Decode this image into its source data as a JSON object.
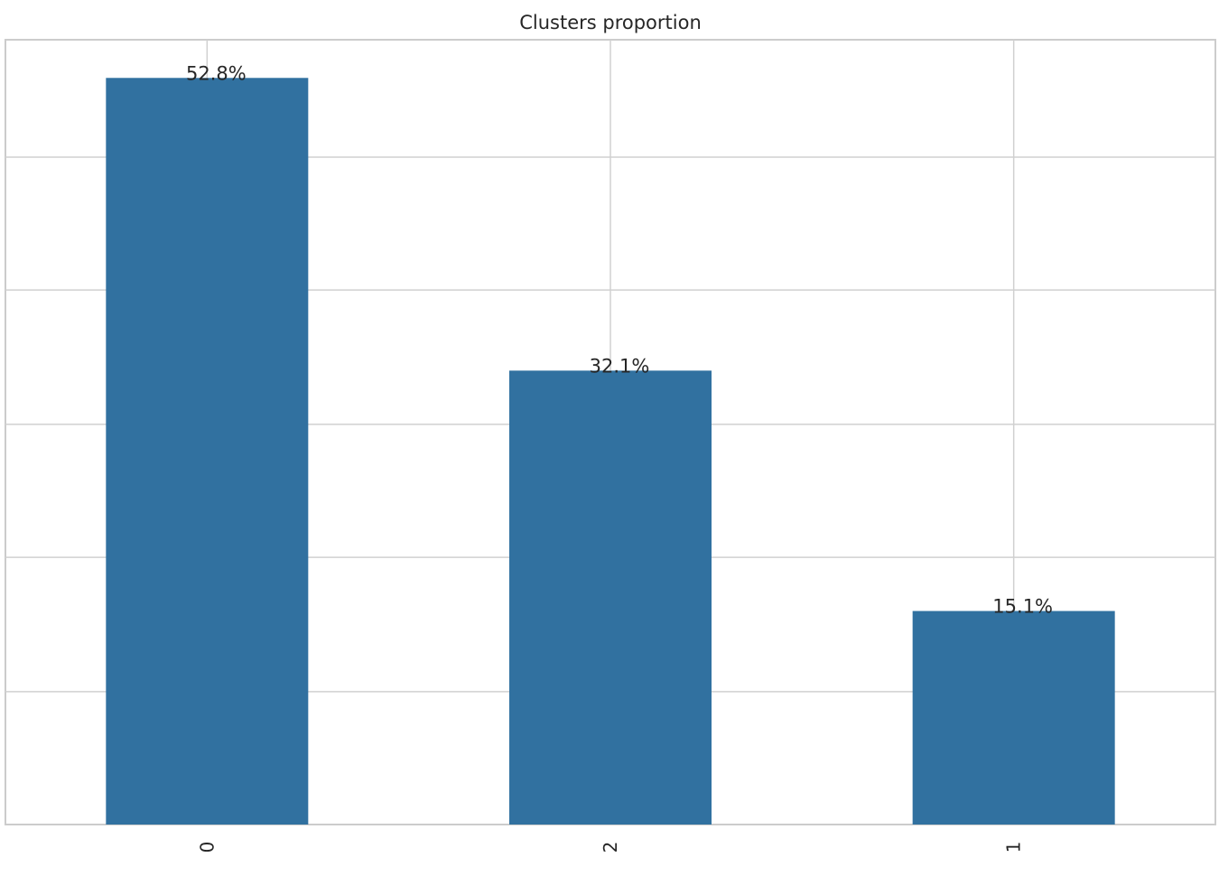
{
  "chart_data": {
    "type": "bar",
    "title": "Clusters proportion",
    "xlabel": "",
    "ylabel": "",
    "categories": [
      "0",
      "2",
      "1"
    ],
    "values": [
      52.8,
      32.1,
      15.1
    ],
    "data_labels": [
      "52.8%",
      "32.1%",
      "15.1%"
    ],
    "ylim": [
      0,
      55.5
    ],
    "y_gridlines": [
      9.4,
      18.9,
      28.3,
      37.8,
      47.2
    ],
    "grid": true,
    "x_tick_rotation": "vertical",
    "legend": "none",
    "bar_color": "#3171a0",
    "grid_color": "#d0d0d0",
    "frame_color": "#cccccc",
    "text_color": "#262626"
  }
}
